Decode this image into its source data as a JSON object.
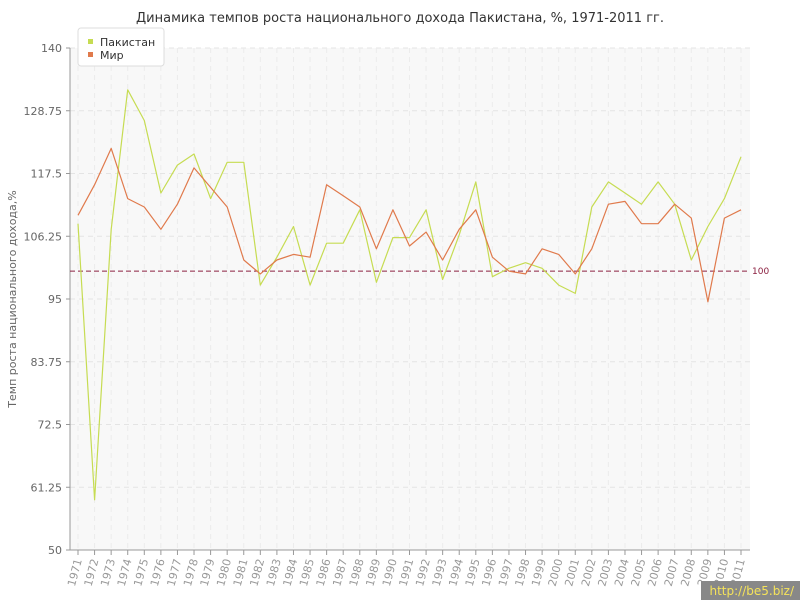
{
  "chart_data": {
    "type": "line",
    "title": "Динамика темпов роста национального дохода Пакистана, %, 1971-2011 гг.",
    "xlabel": "",
    "ylabel": "Темп роста национального дохода,%",
    "ylim": [
      50,
      140
    ],
    "yticks": [
      "50",
      "61.25",
      "72.5",
      "83.75",
      "95",
      "106.25",
      "117.5",
      "128.75",
      "140"
    ],
    "grid": true,
    "legend_position": "top-left",
    "x": [
      "1971",
      "1972",
      "1973",
      "1974",
      "1975",
      "1976",
      "1977",
      "1978",
      "1979",
      "1980",
      "1981",
      "1982",
      "1983",
      "1984",
      "1985",
      "1986",
      "1987",
      "1988",
      "1989",
      "1990",
      "1991",
      "1992",
      "1993",
      "1994",
      "1995",
      "1996",
      "1997",
      "1998",
      "1999",
      "2000",
      "2001",
      "2002",
      "2003",
      "2004",
      "2005",
      "2006",
      "2007",
      "2008",
      "2009",
      "2010",
      "2011"
    ],
    "series": [
      {
        "name": "Пакистан",
        "color": "#c6dc52",
        "values": [
          108.5,
          59,
          107.5,
          132.5,
          127,
          114,
          119,
          121,
          113,
          119.5,
          119.5,
          97.5,
          102.5,
          108,
          97.5,
          105,
          105,
          111,
          98,
          106,
          106,
          111,
          98.5,
          106.5,
          116,
          99,
          100.5,
          101.5,
          100.5,
          97.5,
          96,
          111.5,
          116,
          114,
          112,
          116,
          112,
          102,
          108,
          113,
          120.5
        ]
      },
      {
        "name": "Мир",
        "color": "#e07a4c",
        "values": [
          110,
          115.5,
          122,
          113,
          111.5,
          107.5,
          112,
          118.5,
          115,
          111.5,
          102,
          99.5,
          102,
          103,
          102.5,
          115.5,
          113.5,
          111.5,
          104,
          111,
          104.5,
          107,
          102,
          107.5,
          111,
          102.5,
          100,
          99.5,
          104,
          103,
          99.5,
          104,
          112,
          112.5,
          108.5,
          108.5,
          112,
          109.5,
          94.5,
          109.5,
          111
        ]
      }
    ],
    "reference_line": {
      "value": 100,
      "label": "100",
      "color": "#8b2040"
    }
  },
  "watermark": "http://be5.biz/"
}
